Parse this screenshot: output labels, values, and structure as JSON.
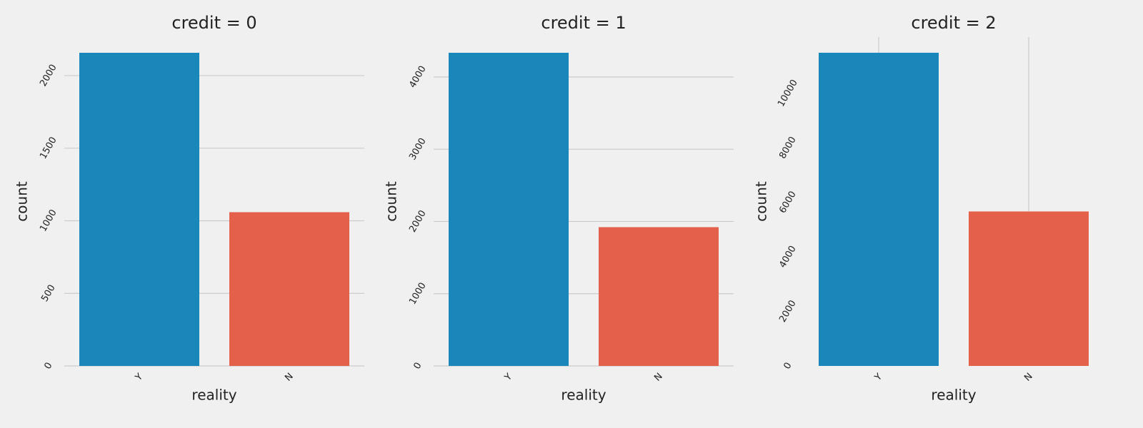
{
  "chart_data": [
    {
      "type": "bar",
      "title": "credit = 0",
      "x_label": "reality",
      "y_label": "count",
      "categories": [
        "Y",
        "N"
      ],
      "values": [
        2157,
        1059
      ],
      "colors": [
        "#1a87bb",
        "#e5604a"
      ],
      "ylim": [
        0,
        2265
      ],
      "yticks": [
        0,
        500,
        1000,
        1500,
        2000
      ],
      "grid": "y"
    },
    {
      "type": "bar",
      "title": "credit = 1",
      "x_label": "reality",
      "y_label": "count",
      "categories": [
        "Y",
        "N"
      ],
      "values": [
        4335,
        1921
      ],
      "colors": [
        "#1a87bb",
        "#e5604a"
      ],
      "ylim": [
        0,
        4552
      ],
      "yticks": [
        0,
        1000,
        2000,
        3000,
        4000
      ],
      "grid": "y"
    },
    {
      "type": "bar",
      "title": "credit = 2",
      "x_label": "reality",
      "y_label": "count",
      "categories": [
        "Y",
        "N"
      ],
      "values": [
        11488,
        5666
      ],
      "colors": [
        "#1a87bb",
        "#e5604a"
      ],
      "ylim": [
        0,
        12062
      ],
      "yticks": [
        0,
        2000,
        4000,
        6000,
        8000,
        10000
      ],
      "grid": "x"
    }
  ]
}
